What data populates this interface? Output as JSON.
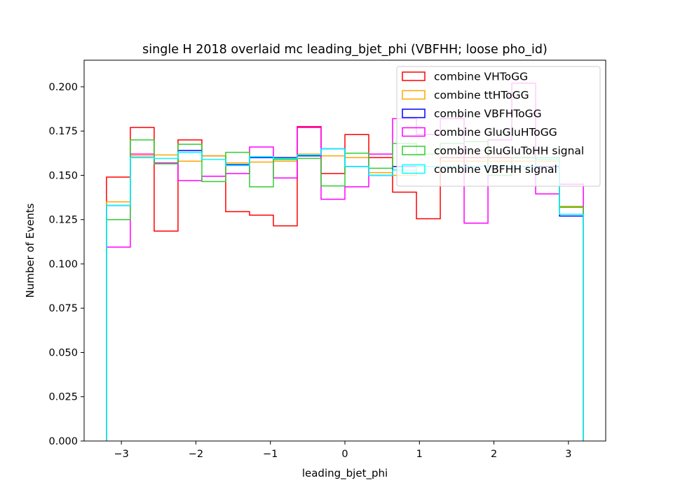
{
  "chart_data": {
    "type": "histogram-step",
    "title": "single H 2018 overlaid mc leading_bjet_phi (VBFHH; loose pho_id)",
    "xlabel": "leading_bjet_phi",
    "ylabel": "Number of Events",
    "xlim": [
      -3.5,
      3.5
    ],
    "ylim": [
      0,
      0.215
    ],
    "xticks": [
      -3,
      -2,
      -1,
      0,
      1,
      2,
      3
    ],
    "xtick_labels": [
      "−3",
      "−2",
      "−1",
      "0",
      "1",
      "2",
      "3"
    ],
    "yticks": [
      0.0,
      0.025,
      0.05,
      0.075,
      0.1,
      0.125,
      0.15,
      0.175,
      0.2
    ],
    "ytick_labels": [
      "0.000",
      "0.025",
      "0.050",
      "0.075",
      "0.100",
      "0.125",
      "0.150",
      "0.175",
      "0.200"
    ],
    "grid": false,
    "legend_position": "top-right",
    "bin_edges": [
      -3.2,
      -2.88,
      -2.56,
      -2.24,
      -1.92,
      -1.6,
      -1.28,
      -0.96,
      -0.64,
      -0.32,
      0.0,
      0.32,
      0.64,
      0.96,
      1.28,
      1.6,
      1.92,
      2.24,
      2.56,
      2.88,
      3.2
    ],
    "series": [
      {
        "name": "combine VHToGG",
        "color": "#ff0000",
        "values": [
          0.149,
          0.177,
          0.1185,
          0.17,
          0.161,
          0.1295,
          0.1275,
          0.1215,
          0.1775,
          0.151,
          0.173,
          0.16,
          0.1405,
          0.1255,
          0.16,
          0.16,
          0.16,
          0.16,
          0.155,
          0.132
        ]
      },
      {
        "name": "combine ttHToGG",
        "color": "#ffa500",
        "values": [
          0.135,
          0.161,
          0.1615,
          0.158,
          0.161,
          0.157,
          0.1575,
          0.158,
          0.162,
          0.161,
          0.16,
          0.1515,
          0.15,
          0.155,
          0.158,
          0.158,
          0.158,
          0.158,
          0.158,
          0.1325
        ]
      },
      {
        "name": "combine VBFHToGG",
        "color": "#0000ff",
        "values": [
          0.133,
          0.16,
          0.157,
          0.164,
          0.159,
          0.156,
          0.16,
          0.16,
          0.161,
          0.165,
          0.155,
          0.15,
          0.155,
          0.155,
          0.155,
          0.155,
          0.155,
          0.155,
          0.155,
          0.127
        ]
      },
      {
        "name": "combine GluGluHToGG",
        "color": "#ff00ff",
        "values": [
          0.1095,
          0.162,
          0.157,
          0.147,
          0.1495,
          0.151,
          0.166,
          0.1485,
          0.177,
          0.1365,
          0.1435,
          0.162,
          0.182,
          0.173,
          0.182,
          0.123,
          0.17,
          0.202,
          0.1395,
          0.145
        ]
      },
      {
        "name": "combine GluGluToHH signal",
        "color": "#32cd32",
        "values": [
          0.125,
          0.17,
          0.1565,
          0.1675,
          0.1465,
          0.163,
          0.1435,
          0.159,
          0.1595,
          0.144,
          0.1625,
          0.154,
          0.168,
          0.162,
          0.168,
          0.169,
          0.15,
          0.16,
          0.16,
          0.132
        ]
      },
      {
        "name": "combine VBFHH signal",
        "color": "#00ffff",
        "values": [
          0.133,
          0.16,
          0.1595,
          0.163,
          0.159,
          0.1555,
          0.1605,
          0.1595,
          0.1615,
          0.165,
          0.155,
          0.15,
          0.153,
          0.155,
          0.155,
          0.155,
          0.155,
          0.155,
          0.159,
          0.128
        ]
      }
    ]
  }
}
